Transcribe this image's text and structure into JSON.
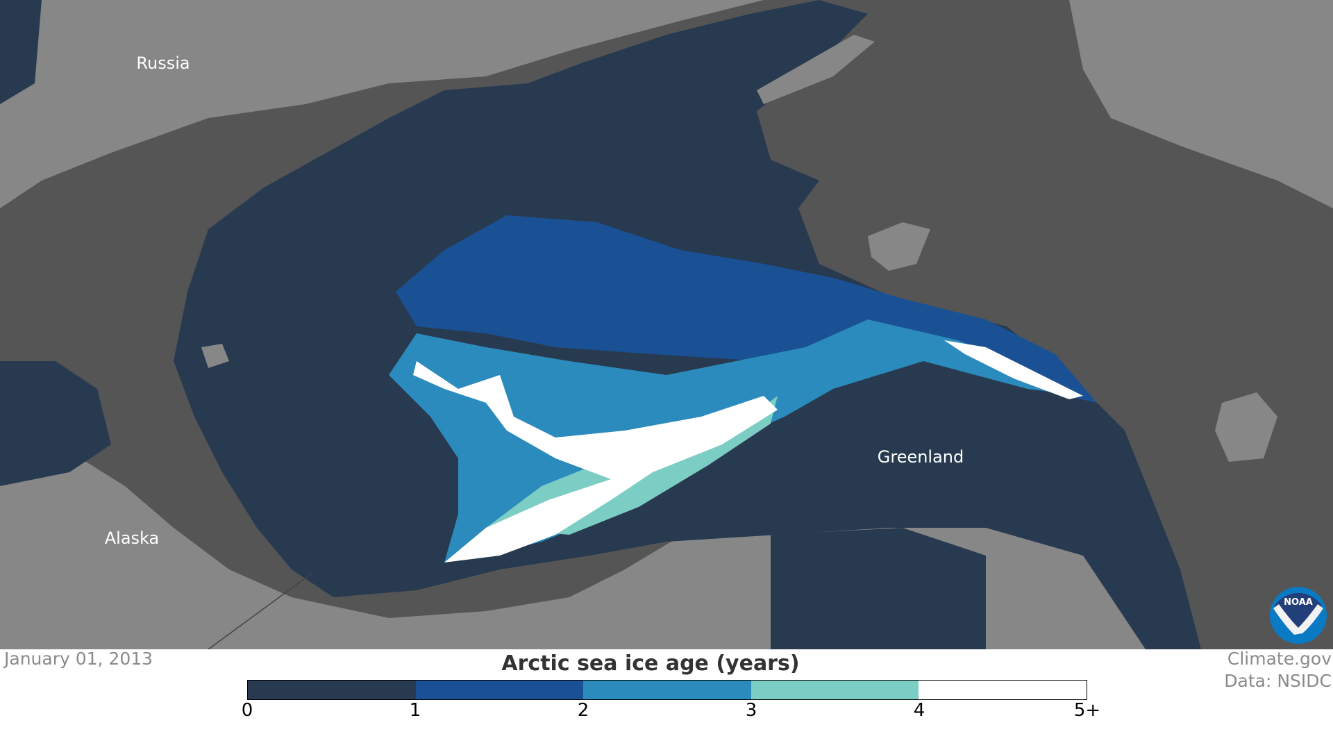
{
  "map": {
    "labels": {
      "russia": "Russia",
      "alaska": "Alaska",
      "greenland": "Greenland"
    },
    "colors": {
      "land": "#878787",
      "land_shadow": "#555555",
      "ocean_no_ice": "#283a50"
    }
  },
  "footer": {
    "date": "January 01, 2013",
    "title": "Arctic sea ice age (years)",
    "credit_site": "Climate.gov",
    "credit_data": "Data: NSIDC",
    "logo_text": "NOAA"
  },
  "legend": {
    "ticks": [
      "0",
      "1",
      "2",
      "3",
      "4",
      "5+"
    ],
    "bins": [
      {
        "range": "0-1",
        "color": "#283a50"
      },
      {
        "range": "1-2",
        "color": "#1a5094"
      },
      {
        "range": "2-3",
        "color": "#2b8bbd"
      },
      {
        "range": "3-4",
        "color": "#7ccdc4"
      },
      {
        "range": "4-5+",
        "color": "#ffffff"
      }
    ]
  }
}
